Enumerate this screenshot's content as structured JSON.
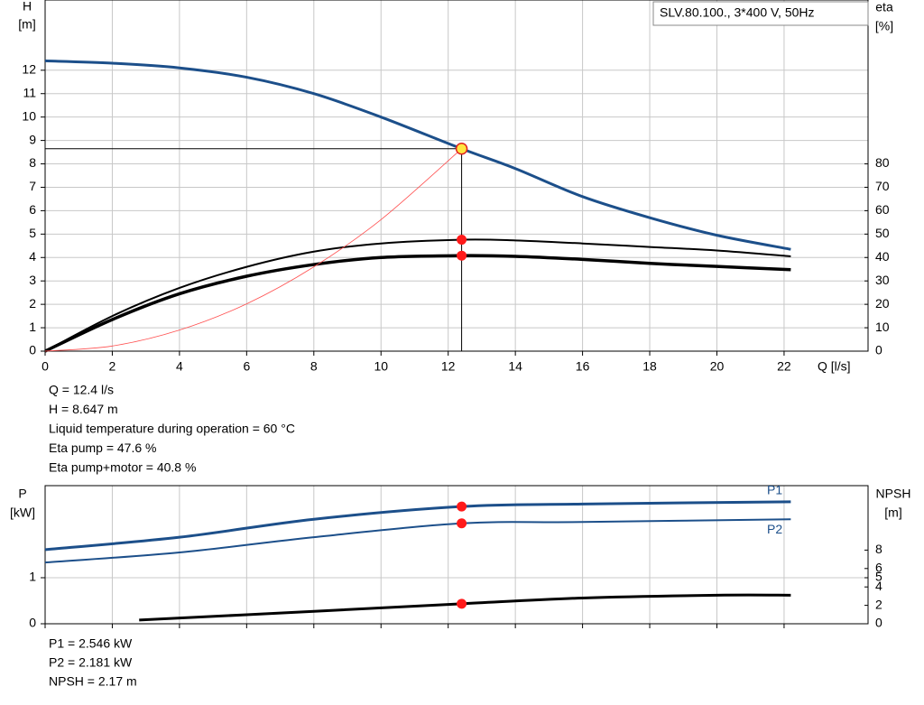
{
  "chart_data": [
    {
      "type": "line",
      "title": "SLV.80.100., 3*400 V, 50Hz",
      "y_label": [
        "H",
        "[m]"
      ],
      "y2_label": [
        "eta",
        "[%]"
      ],
      "x_label": "Q [l/s]",
      "xlim": [
        0,
        24.5
      ],
      "xticks": [
        0,
        2,
        4,
        6,
        8,
        10,
        12,
        14,
        16,
        18,
        20,
        22
      ],
      "ylim": [
        0,
        15
      ],
      "yticks": [
        0,
        1,
        2,
        3,
        4,
        5,
        6,
        7,
        8,
        9,
        10,
        11,
        12
      ],
      "y2lim": [
        0,
        150
      ],
      "y2ticks": [
        0,
        10,
        20,
        30,
        40,
        50,
        60,
        70,
        80
      ],
      "grid": true,
      "series": [
        {
          "color": "#1c4f8a",
          "width": 3,
          "x": [
            0,
            2,
            4,
            6,
            8,
            10,
            12.4,
            14,
            16,
            18,
            20,
            22.2
          ],
          "values": [
            12.4,
            12.3,
            12.1,
            11.7,
            11.0,
            10.0,
            8.647,
            7.8,
            6.6,
            5.7,
            4.95,
            4.35
          ]
        },
        {
          "color": "#000000",
          "width": 2,
          "axis": "y2",
          "x": [
            0,
            2,
            4,
            6,
            8,
            10,
            12.4,
            14,
            16,
            18,
            20,
            22.2
          ],
          "values": [
            0,
            15,
            27,
            36,
            42.5,
            46,
            47.6,
            47.3,
            46,
            44.5,
            43,
            40.5
          ]
        },
        {
          "color": "#000000",
          "width": 3.5,
          "axis": "y2",
          "x": [
            0,
            2,
            4,
            6,
            8,
            10,
            12.4,
            14,
            16,
            18,
            20,
            22.2
          ],
          "values": [
            0,
            13.5,
            24.5,
            32,
            37,
            40,
            40.8,
            40.5,
            39.2,
            37.5,
            36.2,
            34.8
          ]
        },
        {
          "color": "#ff5050",
          "width": 0.8,
          "x": [
            0,
            2,
            4,
            6,
            8,
            10,
            12.4
          ],
          "values": [
            0,
            0.22,
            0.9,
            2.02,
            3.6,
            5.62,
            8.647
          ]
        }
      ],
      "operating_point": {
        "q": 12.4,
        "h": 8.647,
        "eta_pump": 47.6,
        "eta_total": 40.8
      },
      "info": [
        "Q = 12.4 l/s",
        "H = 8.647 m",
        "Liquid temperature during operation = 60 °C",
        "Eta pump = 47.6 %",
        "Eta pump+motor = 40.8 %"
      ]
    },
    {
      "type": "line",
      "y_label": [
        "P",
        "[kW]"
      ],
      "y2_label": [
        "NPSH",
        "[m]"
      ],
      "xlim": [
        0,
        24.5
      ],
      "xticks": [
        0,
        2,
        4,
        6,
        8,
        10,
        12,
        14,
        16,
        18,
        20,
        22
      ],
      "ylim": [
        0,
        3
      ],
      "yticks": [
        0,
        1
      ],
      "y2lim": [
        0,
        15
      ],
      "y2ticks": [
        0,
        2,
        4,
        5,
        6,
        8
      ],
      "grid": true,
      "series": [
        {
          "name": "P1",
          "color": "#1c4f8a",
          "width": 3,
          "x": [
            0,
            4,
            8,
            12.4,
            16,
            22.2
          ],
          "values": [
            1.61,
            1.88,
            2.27,
            2.546,
            2.6,
            2.65
          ]
        },
        {
          "name": "P2",
          "color": "#1c4f8a",
          "width": 2,
          "x": [
            0,
            4,
            8,
            12.4,
            16,
            22.2
          ],
          "values": [
            1.33,
            1.55,
            1.88,
            2.181,
            2.21,
            2.27
          ]
        },
        {
          "color": "#000000",
          "width": 3,
          "axis": "y2",
          "x": [
            2.8,
            8,
            12.4,
            16,
            20,
            22.2
          ],
          "values": [
            0.4,
            1.35,
            2.17,
            2.8,
            3.1,
            3.1
          ]
        }
      ],
      "operating_point": {
        "q": 12.4,
        "p1": 2.546,
        "p2": 2.181,
        "npsh": 2.17
      },
      "info": [
        "P1 = 2.546 kW",
        "P2 = 2.181 kW",
        "NPSH = 2.17 m"
      ]
    }
  ]
}
